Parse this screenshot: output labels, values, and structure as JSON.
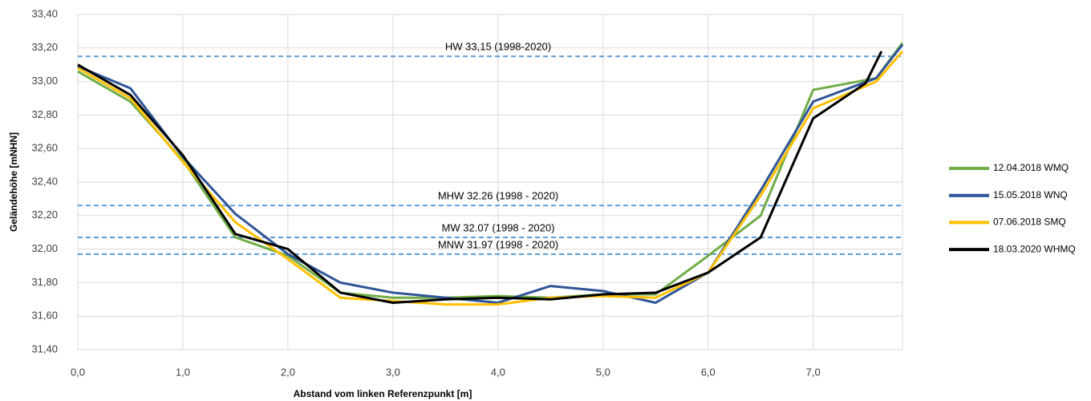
{
  "chart_data": {
    "type": "line",
    "xlabel": "Abstand vom linken Referenzpunkt [m]",
    "ylabel": "Geländehöhe [mNHN]",
    "xlim": [
      0,
      7.85
    ],
    "ylim": [
      31.4,
      33.4
    ],
    "xticks": [
      {
        "value": 0,
        "label": "0,0"
      },
      {
        "value": 1,
        "label": "1,0"
      },
      {
        "value": 2,
        "label": "2,0"
      },
      {
        "value": 3,
        "label": "3,0"
      },
      {
        "value": 4,
        "label": "4,0"
      },
      {
        "value": 5,
        "label": "5,0"
      },
      {
        "value": 6,
        "label": "6,0"
      },
      {
        "value": 7,
        "label": "7,0"
      }
    ],
    "yticks": [
      {
        "value": 31.4,
        "label": "31,40"
      },
      {
        "value": 31.6,
        "label": "31,60"
      },
      {
        "value": 31.8,
        "label": "31,80"
      },
      {
        "value": 32.0,
        "label": "32,00"
      },
      {
        "value": 32.2,
        "label": "32,20"
      },
      {
        "value": 32.4,
        "label": "32,40"
      },
      {
        "value": 32.6,
        "label": "32,60"
      },
      {
        "value": 32.8,
        "label": "32,80"
      },
      {
        "value": 33.0,
        "label": "33,00"
      },
      {
        "value": 33.2,
        "label": "33,20"
      },
      {
        "value": 33.4,
        "label": "33,40"
      }
    ],
    "grid": true,
    "legend": "right",
    "reference_lines": [
      {
        "value": 33.15,
        "label": "HW 33,15 (1998-2020)"
      },
      {
        "value": 32.26,
        "label": "MHW 32.26 (1998 - 2020)"
      },
      {
        "value": 32.07,
        "label": "MW 32.07 (1998 - 2020)"
      },
      {
        "value": 31.97,
        "label": "MNW 31.97 (1998 - 2020)"
      }
    ],
    "reference_color": "#5b9bd5",
    "series": [
      {
        "name": "12.04.2018 WMQ",
        "color": "#70ad47",
        "x": [
          0,
          0.5,
          1,
          1.5,
          2,
          2.5,
          3,
          3.5,
          4,
          4.5,
          5,
          5.5,
          6,
          6.5,
          7,
          7.6,
          7.85
        ],
        "values": [
          33.06,
          32.88,
          32.53,
          32.07,
          31.96,
          31.74,
          31.71,
          31.71,
          31.72,
          31.71,
          31.73,
          31.73,
          31.96,
          32.2,
          32.95,
          33.02,
          33.23
        ]
      },
      {
        "name": "15.05.2018 WNQ",
        "color": "#2f5597",
        "x": [
          0,
          0.5,
          1,
          1.5,
          2,
          2.5,
          3,
          3.5,
          4,
          4.5,
          5,
          5.5,
          6,
          6.5,
          7,
          7.6,
          7.85
        ],
        "values": [
          33.09,
          32.96,
          32.55,
          32.21,
          31.97,
          31.8,
          31.74,
          31.71,
          31.68,
          31.78,
          31.75,
          31.68,
          31.86,
          32.35,
          32.88,
          33.02,
          33.22
        ]
      },
      {
        "name": "07.06.2018 SMQ",
        "color": "#ffc000",
        "x": [
          0,
          0.5,
          1,
          1.5,
          2,
          2.5,
          3,
          3.5,
          4,
          4.5,
          5,
          5.5,
          6,
          6.5,
          7,
          7.6,
          7.85
        ],
        "values": [
          33.08,
          32.9,
          32.52,
          32.16,
          31.94,
          31.71,
          31.69,
          31.67,
          31.67,
          31.71,
          31.72,
          31.71,
          31.86,
          32.32,
          32.84,
          33.0,
          33.18
        ]
      },
      {
        "name": "18.03.2020 WHMQ",
        "color": "#000000",
        "x": [
          0,
          0.5,
          1,
          1.5,
          2,
          2.5,
          3,
          3.5,
          4,
          4.5,
          5,
          5.5,
          6,
          6.5,
          7,
          7.5,
          7.65
        ],
        "values": [
          33.1,
          32.92,
          32.56,
          32.09,
          32.0,
          31.74,
          31.68,
          31.7,
          31.71,
          31.7,
          31.73,
          31.74,
          31.86,
          32.07,
          32.78,
          32.99,
          33.18
        ]
      }
    ]
  }
}
